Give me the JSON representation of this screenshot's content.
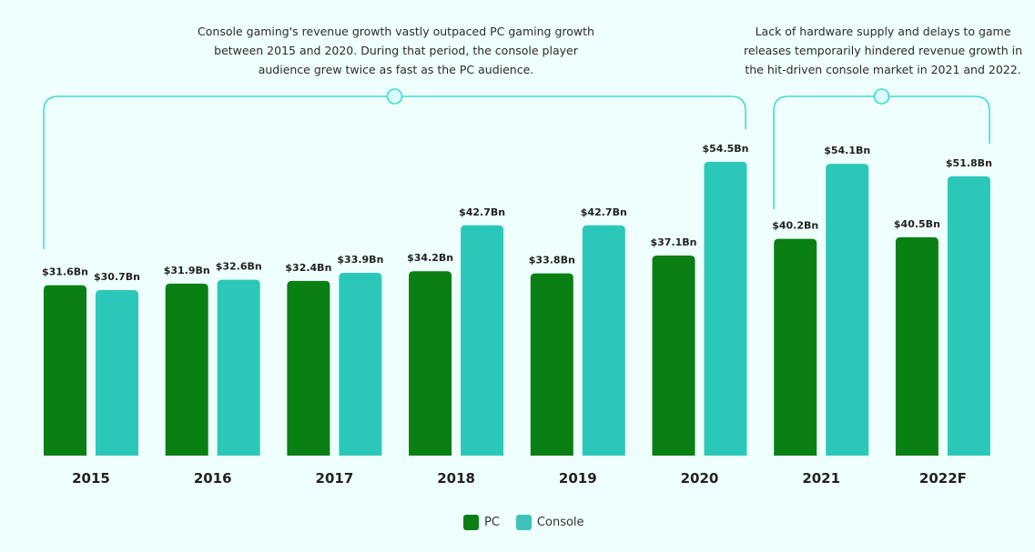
{
  "annotations": [
    {
      "text": "Console gaming's revenue growth vastly outpaced PC gaming growth between 2015 and 2020. During that period, the console player audience grew twice as fast as the PC audience.",
      "span": [
        "2015",
        "2020"
      ]
    },
    {
      "text": "Lack of hardware supply and delays to game releases temporarily hindered revenue growth in the hit-driven console market in 2021 and 2022.",
      "span": [
        "2021",
        "2022F"
      ]
    }
  ],
  "colors": {
    "pc": "#097f14",
    "console": "#2bc8ba",
    "bracket": "#3fdcd0",
    "background": "#effffe"
  },
  "chart_data": {
    "type": "bar",
    "title": "",
    "xlabel": "",
    "ylabel": "",
    "categories": [
      "2015",
      "2016",
      "2017",
      "2018",
      "2019",
      "2020",
      "2021",
      "2022F"
    ],
    "series": [
      {
        "name": "PC",
        "values": [
          31.6,
          31.9,
          32.4,
          34.2,
          33.8,
          37.1,
          40.2,
          40.5
        ],
        "labels": [
          "$31.6Bn",
          "$31.9Bn",
          "$32.4Bn",
          "$34.2Bn",
          "$33.8Bn",
          "$37.1Bn",
          "$40.2Bn",
          "$40.5Bn"
        ]
      },
      {
        "name": "Console",
        "values": [
          30.7,
          32.6,
          33.9,
          42.7,
          42.7,
          54.5,
          54.1,
          51.8
        ],
        "labels": [
          "$30.7Bn",
          "$32.6Bn",
          "$33.9Bn",
          "$42.7Bn",
          "$42.7Bn",
          "$54.5Bn",
          "$54.1Bn",
          "$51.8Bn"
        ]
      }
    ],
    "unit": "Bn USD",
    "ylim": [
      0,
      55
    ],
    "grid": false,
    "legend": "bottom-center"
  },
  "legend": {
    "pc_label": "PC",
    "console_label": "Console"
  }
}
